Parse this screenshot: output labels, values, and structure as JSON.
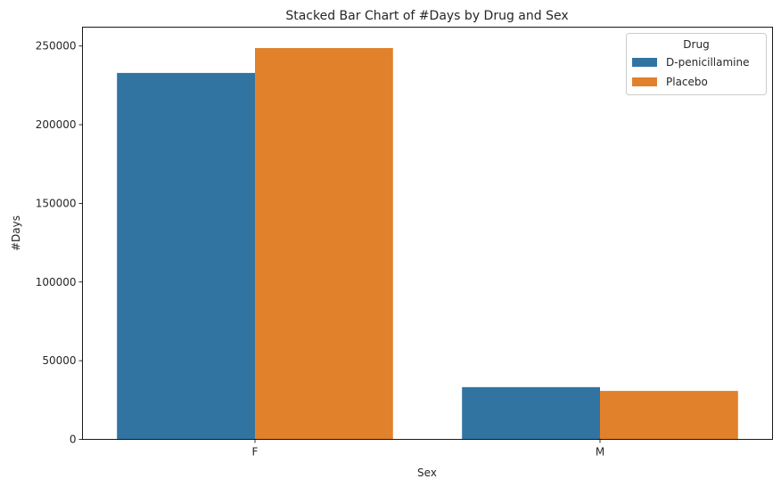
{
  "chart_data": {
    "type": "bar",
    "title": "Stacked Bar Chart of #Days by Drug and Sex",
    "xlabel": "Sex",
    "ylabel": "#Days",
    "categories": [
      "F",
      "M"
    ],
    "series": [
      {
        "name": "D-penicillamine",
        "color": "#3274a1",
        "values": [
          232900,
          33200
        ]
      },
      {
        "name": "Placebo",
        "color": "#e1812c",
        "values": [
          248700,
          30800
        ]
      }
    ],
    "ylim": [
      0,
      262000
    ],
    "yticks": [
      0,
      50000,
      100000,
      150000,
      200000,
      250000
    ],
    "ytick_labels": [
      "0",
      "50000",
      "100000",
      "150000",
      "200000",
      "250000"
    ],
    "grid": false,
    "legend": {
      "title": "Drug",
      "placement": "top-right"
    }
  }
}
